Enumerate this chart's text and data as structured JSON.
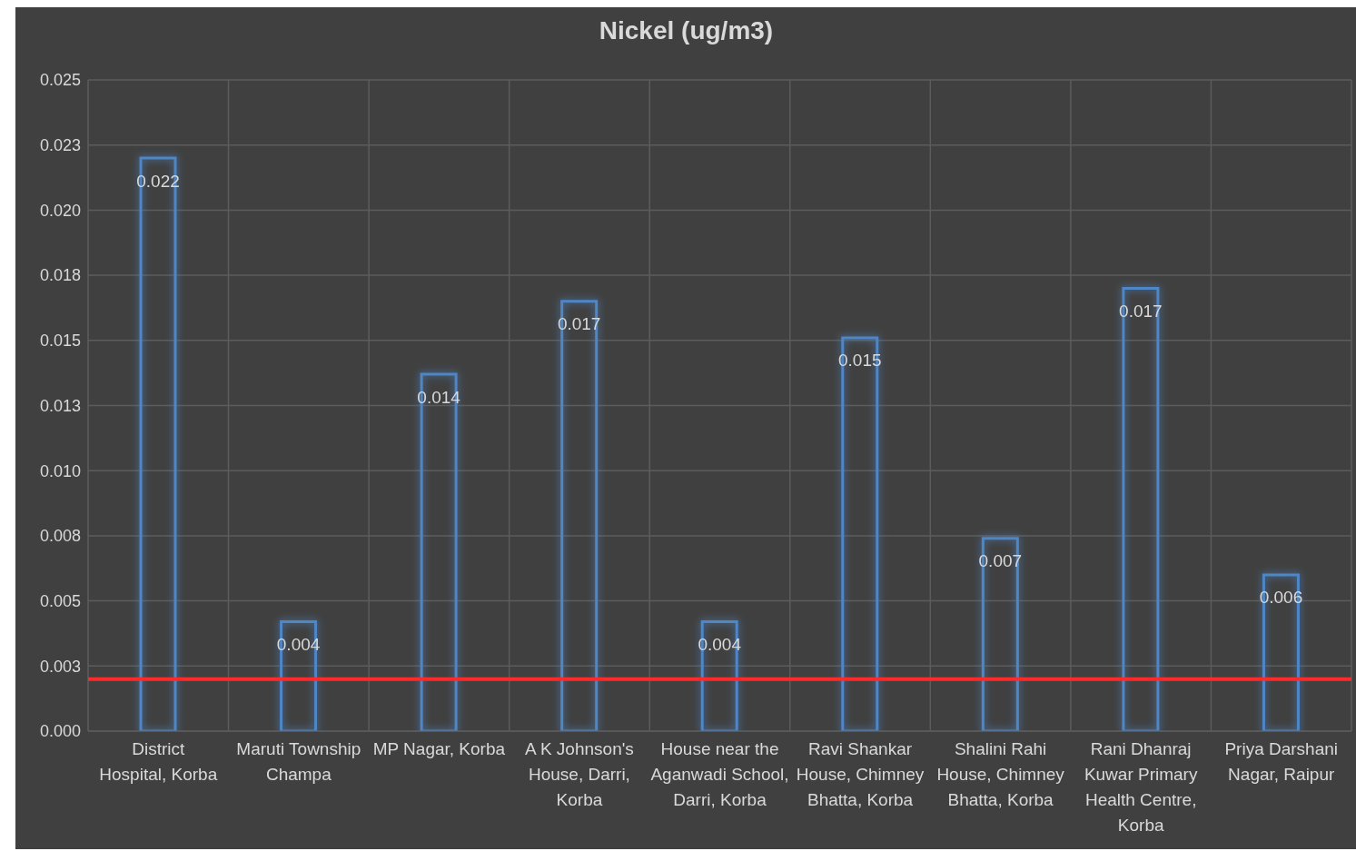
{
  "chart_data": {
    "type": "bar",
    "title": "Nickel (ug/m3)",
    "categories": [
      "District Hospital, Korba",
      "Maruti Township Champa",
      "MP Nagar, Korba",
      "A K Johnson's House, Darri, Korba",
      "House near the Aganwadi School, Darri, Korba",
      "Ravi Shankar House, Chimney Bhatta, Korba",
      "Shalini Rahi House, Chimney Bhatta, Korba",
      "Rani Dhanraj Kuwar Primary Health Centre, Korba",
      "Priya Darshani Nagar, Raipur"
    ],
    "values": [
      0.022,
      0.0042,
      0.0137,
      0.0165,
      0.0042,
      0.0151,
      0.0074,
      0.017,
      0.006
    ],
    "value_labels": [
      "0.022",
      "0.004",
      "0.014",
      "0.017",
      "0.004",
      "0.015",
      "0.007",
      "0.017",
      "0.006"
    ],
    "color": "#4f86c6",
    "ylim": [
      0,
      0.025
    ],
    "yticks": [
      {
        "value": 0,
        "label": "0.000"
      },
      {
        "value": 0.0025,
        "label": "0.003"
      },
      {
        "value": 0.005,
        "label": "0.005"
      },
      {
        "value": 0.0075,
        "label": "0.008"
      },
      {
        "value": 0.01,
        "label": "0.010"
      },
      {
        "value": 0.0125,
        "label": "0.013"
      },
      {
        "value": 0.015,
        "label": "0.015"
      },
      {
        "value": 0.0175,
        "label": "0.018"
      },
      {
        "value": 0.02,
        "label": "0.020"
      },
      {
        "value": 0.0225,
        "label": "0.023"
      },
      {
        "value": 0.025,
        "label": "0.025"
      }
    ],
    "ref_lines": [
      {
        "axis": "y",
        "value": 0.002,
        "color": "#ff2a2a"
      }
    ],
    "grid": true,
    "legend": false
  }
}
